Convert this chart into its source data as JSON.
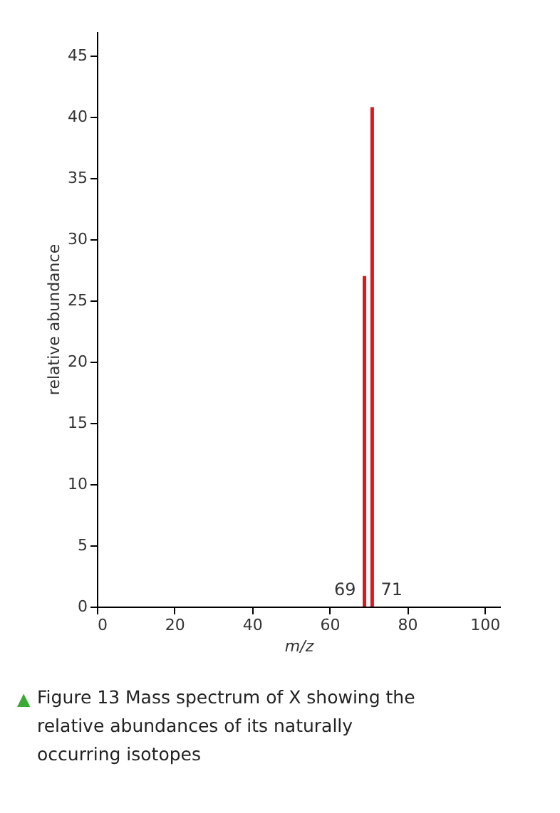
{
  "chart_data": {
    "type": "bar",
    "x": [
      69,
      71
    ],
    "values": [
      27,
      40.8
    ],
    "color": "#e3141b",
    "xlim": [
      0,
      104
    ],
    "xticks": [
      0,
      20,
      40,
      60,
      80,
      100
    ],
    "ylim": [
      0,
      47
    ],
    "yticks": [
      0,
      5,
      10,
      15,
      20,
      25,
      30,
      35,
      40,
      45
    ],
    "xlabel": "m/z",
    "ylabel": "relative abundance",
    "grid": false,
    "annotations": [
      {
        "text": "69",
        "x": 69,
        "y": 0
      },
      {
        "text": "71",
        "x": 71,
        "y": 0
      },
      "▲ Figure 13 Mass spectrum of X showing the relative abundances of its naturally occurring isotopes"
    ]
  }
}
